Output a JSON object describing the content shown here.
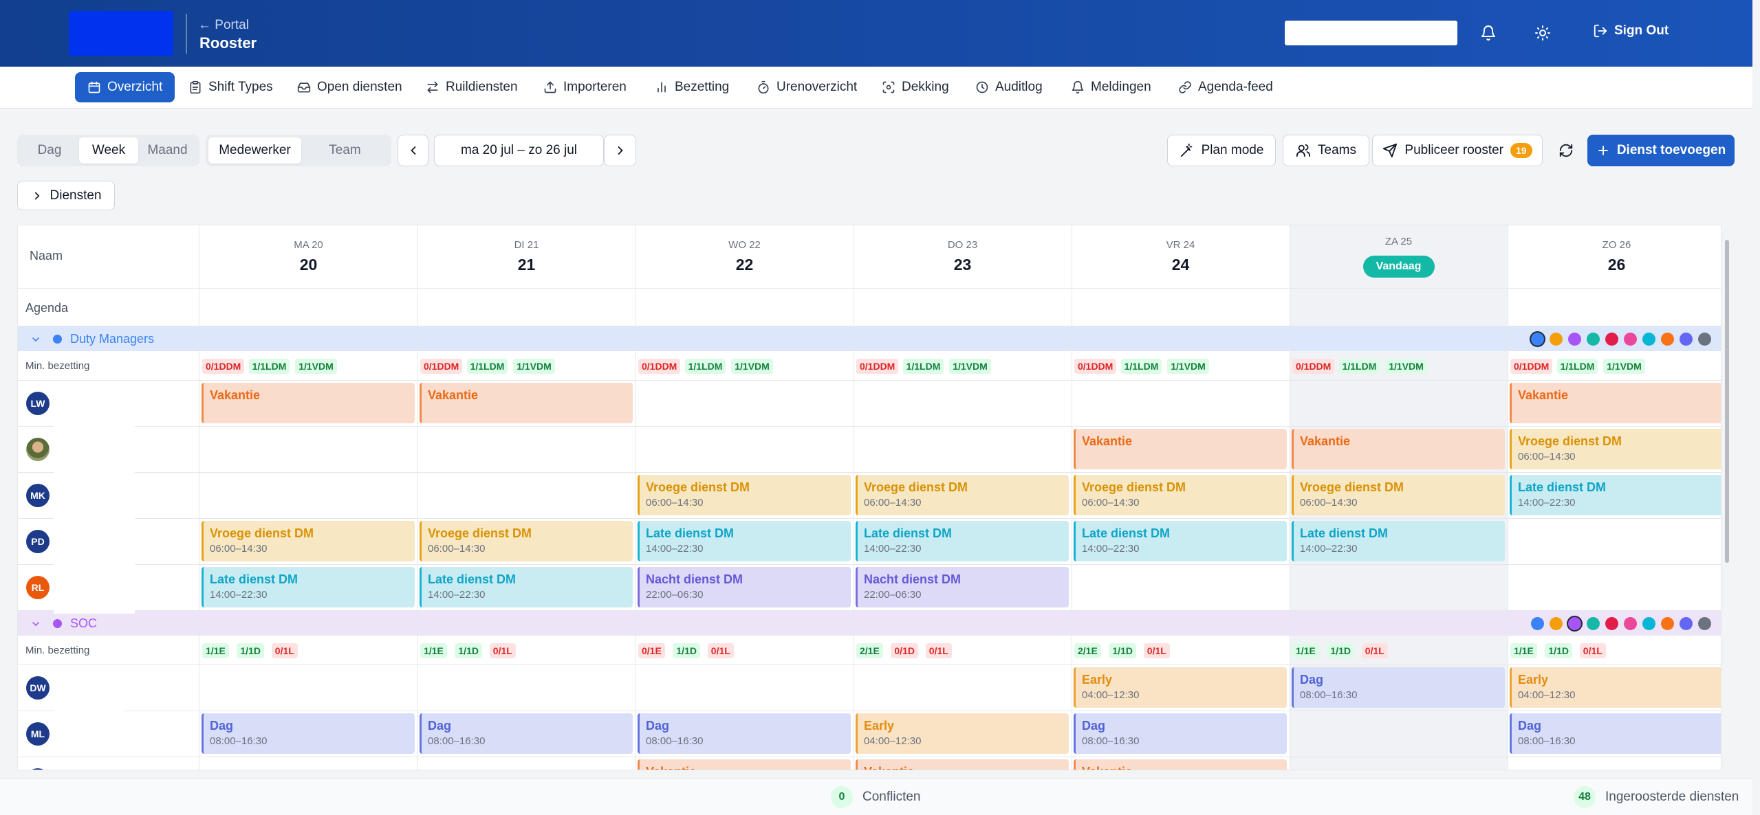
{
  "header": {
    "back": "← Portal",
    "title": "Rooster",
    "sign_out": "Sign Out"
  },
  "nav": [
    {
      "label": "Overzicht",
      "icon": "calendar-icon",
      "active": true
    },
    {
      "label": "Shift Types",
      "icon": "clipboard-icon"
    },
    {
      "label": "Open diensten",
      "icon": "inbox-icon"
    },
    {
      "label": "Ruildiensten",
      "icon": "swap-icon"
    },
    {
      "label": "Importeren",
      "icon": "upload-icon"
    },
    {
      "label": "Bezetting",
      "icon": "bar-chart-icon"
    },
    {
      "label": "Urenoverzicht",
      "icon": "timer-icon"
    },
    {
      "label": "Dekking",
      "icon": "scan-icon"
    },
    {
      "label": "Auditlog",
      "icon": "clock-icon"
    },
    {
      "label": "Meldingen",
      "icon": "bell-icon"
    },
    {
      "label": "Agenda-feed",
      "icon": "link-icon"
    }
  ],
  "toolbar": {
    "view_modes": [
      "Dag",
      "Week",
      "Maand"
    ],
    "view_active": "Week",
    "group_modes": [
      "Medewerker",
      "Team"
    ],
    "group_active": "Medewerker",
    "date_range": "ma 20 jul – zo 26 jul",
    "plan_mode": "Plan mode",
    "teams": "Teams",
    "publish": "Publiceer rooster",
    "publish_count": "19",
    "add_shift": "Dienst toevoegen",
    "services_toggle": "Diensten"
  },
  "grid": {
    "name_header": "Naam",
    "agenda_label": "Agenda",
    "min_label": "Min. bezetting",
    "today_badge": "Vandaag",
    "today_index": 5,
    "days": [
      {
        "label": "MA 20",
        "num": "20"
      },
      {
        "label": "DI 21",
        "num": "21"
      },
      {
        "label": "WO 22",
        "num": "22"
      },
      {
        "label": "DO 23",
        "num": "23"
      },
      {
        "label": "VR 24",
        "num": "24"
      },
      {
        "label": "ZA 25",
        "num": ""
      },
      {
        "label": "ZO 26",
        "num": "26"
      }
    ],
    "dot_colors": [
      "#3b82f6",
      "#f59e0b",
      "#a855f7",
      "#14b8a6",
      "#e11d48",
      "#ec4899",
      "#06b6d4",
      "#f97316",
      "#6366f1",
      "#6b7280"
    ],
    "groups": [
      {
        "name": "Duty Managers",
        "color": "#3b82f6",
        "band": "#dde7fb",
        "selected_dot": 0,
        "mins": [
          [
            [
              "0/1DDM",
              "bad"
            ],
            [
              "1/1LDM",
              "ok"
            ],
            [
              "1/1VDM",
              "ok"
            ]
          ],
          [
            [
              "0/1DDM",
              "bad"
            ],
            [
              "1/1LDM",
              "ok"
            ],
            [
              "1/1VDM",
              "ok"
            ]
          ],
          [
            [
              "0/1DDM",
              "bad"
            ],
            [
              "1/1LDM",
              "ok"
            ],
            [
              "1/1VDM",
              "ok"
            ]
          ],
          [
            [
              "0/1DDM",
              "bad"
            ],
            [
              "1/1LDM",
              "ok"
            ],
            [
              "1/1VDM",
              "ok"
            ]
          ],
          [
            [
              "0/1DDM",
              "bad"
            ],
            [
              "1/1LDM",
              "ok"
            ],
            [
              "1/1VDM",
              "ok"
            ]
          ],
          [
            [
              "0/1DDM",
              "bad"
            ],
            [
              "1/1LDM",
              "ok"
            ],
            [
              "1/1VDM",
              "ok"
            ]
          ],
          [
            [
              "0/1DDM",
              "bad"
            ],
            [
              "1/1LDM",
              "ok"
            ],
            [
              "1/1VDM",
              "ok"
            ]
          ]
        ],
        "rows": [
          {
            "initials": "LW",
            "avatar": "#1e3a8a",
            "cells": [
              [
                "Vakantie",
                "",
                "vak"
              ],
              [
                "Vakantie",
                "",
                "vak"
              ],
              null,
              null,
              null,
              null,
              [
                "Vakantie",
                "",
                "vak"
              ]
            ]
          },
          {
            "initials": "",
            "avatar": "photo",
            "cells": [
              null,
              null,
              null,
              null,
              [
                "Vakantie",
                "",
                "vak"
              ],
              [
                "Vakantie",
                "",
                "vak"
              ],
              [
                "Vroege dienst DM",
                "06:00–14:30",
                "early"
              ]
            ]
          },
          {
            "initials": "MK",
            "avatar": "#1e3a8a",
            "cells": [
              null,
              null,
              [
                "Vroege dienst DM",
                "06:00–14:30",
                "early"
              ],
              [
                "Vroege dienst DM",
                "06:00–14:30",
                "early"
              ],
              [
                "Vroege dienst DM",
                "06:00–14:30",
                "early"
              ],
              [
                "Vroege dienst DM",
                "06:00–14:30",
                "early"
              ],
              [
                "Late dienst DM",
                "14:00–22:30",
                "late"
              ]
            ]
          },
          {
            "initials": "PD",
            "avatar": "#1e3a8a",
            "cells": [
              [
                "Vroege dienst DM",
                "06:00–14:30",
                "early"
              ],
              [
                "Vroege dienst DM",
                "06:00–14:30",
                "early"
              ],
              [
                "Late dienst DM",
                "14:00–22:30",
                "late"
              ],
              [
                "Late dienst DM",
                "14:00–22:30",
                "late"
              ],
              [
                "Late dienst DM",
                "14:00–22:30",
                "late"
              ],
              [
                "Late dienst DM",
                "14:00–22:30",
                "late"
              ],
              null
            ]
          },
          {
            "initials": "RL",
            "avatar": "#ea580c",
            "cells": [
              [
                "Late dienst DM",
                "14:00–22:30",
                "late"
              ],
              [
                "Late dienst DM",
                "14:00–22:30",
                "late"
              ],
              [
                "Nacht dienst DM",
                "22:00–06:30",
                "night"
              ],
              [
                "Nacht dienst DM",
                "22:00–06:30",
                "night"
              ],
              null,
              null,
              null
            ]
          }
        ]
      },
      {
        "name": "SOC",
        "color": "#a855f7",
        "band": "#ede4f8",
        "selected_dot": 2,
        "mins": [
          [
            [
              "1/1E",
              "ok"
            ],
            [
              "1/1D",
              "ok"
            ],
            [
              "0/1L",
              "bad"
            ]
          ],
          [
            [
              "1/1E",
              "ok"
            ],
            [
              "1/1D",
              "ok"
            ],
            [
              "0/1L",
              "bad"
            ]
          ],
          [
            [
              "0/1E",
              "bad"
            ],
            [
              "1/1D",
              "ok"
            ],
            [
              "0/1L",
              "bad"
            ]
          ],
          [
            [
              "2/1E",
              "ok"
            ],
            [
              "0/1D",
              "bad"
            ],
            [
              "0/1L",
              "bad"
            ]
          ],
          [
            [
              "2/1E",
              "ok"
            ],
            [
              "1/1D",
              "ok"
            ],
            [
              "0/1L",
              "bad"
            ]
          ],
          [
            [
              "1/1E",
              "ok"
            ],
            [
              "1/1D",
              "ok"
            ],
            [
              "0/1L",
              "bad"
            ]
          ],
          [
            [
              "1/1E",
              "ok"
            ],
            [
              "1/1D",
              "ok"
            ],
            [
              "0/1L",
              "bad"
            ]
          ]
        ],
        "rows": [
          {
            "initials": "DW",
            "avatar": "#1e3a8a",
            "cells": [
              null,
              null,
              null,
              null,
              [
                "Early",
                "04:00–12:30",
                "soc-early"
              ],
              [
                "Dag",
                "08:00–16:30",
                "dag"
              ],
              [
                "Early",
                "04:00–12:30",
                "soc-early"
              ]
            ]
          },
          {
            "initials": "ML",
            "avatar": "#1e3a8a",
            "cells": [
              [
                "Dag",
                "08:00–16:30",
                "dag"
              ],
              [
                "Dag",
                "08:00–16:30",
                "dag"
              ],
              [
                "Dag",
                "08:00–16:30",
                "dag"
              ],
              [
                "Early",
                "04:00–12:30",
                "soc-early"
              ],
              [
                "Dag",
                "08:00–16:30",
                "dag"
              ],
              null,
              [
                "Dag",
                "08:00–16:30",
                "dag"
              ]
            ]
          },
          {
            "initials": "",
            "avatar": "#1e3a8a",
            "cells": [
              null,
              null,
              [
                "Vakantie",
                "",
                "vak"
              ],
              [
                "Vakantie",
                "",
                "vak"
              ],
              [
                "Vakantie",
                "",
                "vak"
              ],
              null,
              null
            ]
          }
        ]
      }
    ]
  },
  "footer": {
    "conflicts_count": "0",
    "conflicts_label": "Conflicten",
    "scheduled_count": "48",
    "scheduled_label": "Ingeroosterde diensten"
  }
}
